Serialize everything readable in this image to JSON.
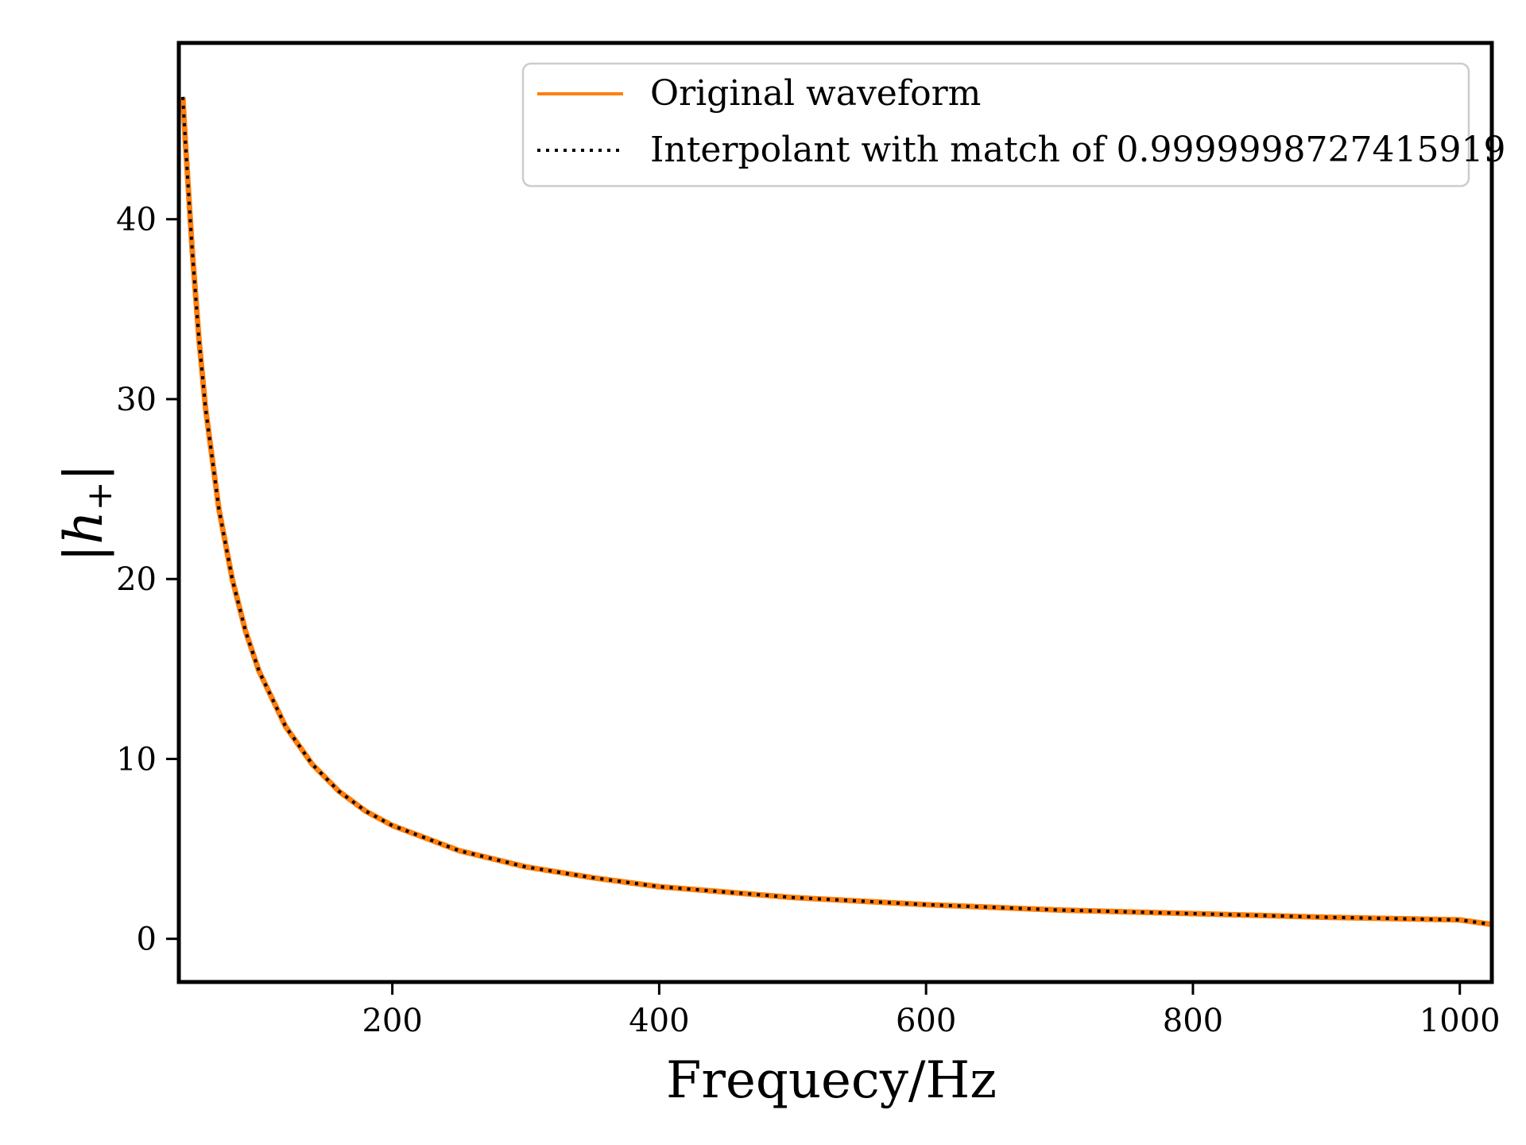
{
  "chart_data": {
    "type": "line",
    "title": "",
    "xlabel": "Frequecy/Hz",
    "ylabel_main": "|h",
    "ylabel_sub": "+",
    "ylabel_close": "|",
    "xlim": [
      40,
      1024
    ],
    "ylim": [
      -2.4,
      49.8
    ],
    "x_ticks": [
      200,
      400,
      600,
      800,
      1000
    ],
    "x_tick_labels": [
      "200",
      "400",
      "600",
      "800",
      "1000"
    ],
    "y_ticks": [
      0,
      10,
      20,
      30,
      40
    ],
    "y_tick_labels": [
      "0",
      "10",
      "20",
      "30",
      "40"
    ],
    "grid": false,
    "legend_position": "top-right",
    "series": [
      {
        "name": "Original waveform",
        "color": "#ff7f0e",
        "style": "solid",
        "x": [
          43,
          45,
          50,
          55,
          60,
          70,
          80,
          90,
          100,
          120,
          140,
          160,
          180,
          200,
          250,
          300,
          350,
          400,
          450,
          500,
          600,
          700,
          800,
          900,
          1000,
          1024
        ],
        "y": [
          46.8,
          44.2,
          38.3,
          33.4,
          29.5,
          23.9,
          20.0,
          17.1,
          14.9,
          11.8,
          9.7,
          8.2,
          7.1,
          6.3,
          4.9,
          4.0,
          3.4,
          2.9,
          2.6,
          2.3,
          1.9,
          1.6,
          1.4,
          1.2,
          1.05,
          0.8
        ]
      },
      {
        "name": "Interpolant with match of 0.9999998727415919",
        "color": "#000000",
        "style": "dotted",
        "x": [
          43,
          45,
          50,
          55,
          60,
          70,
          80,
          90,
          100,
          120,
          140,
          160,
          180,
          200,
          250,
          300,
          350,
          400,
          450,
          500,
          600,
          700,
          800,
          900,
          1000,
          1024
        ],
        "y": [
          46.8,
          44.2,
          38.3,
          33.4,
          29.5,
          23.9,
          20.0,
          17.1,
          14.9,
          11.8,
          9.7,
          8.2,
          7.1,
          6.3,
          4.9,
          4.0,
          3.4,
          2.9,
          2.6,
          2.3,
          1.9,
          1.6,
          1.4,
          1.2,
          1.05,
          0.8
        ]
      }
    ]
  }
}
